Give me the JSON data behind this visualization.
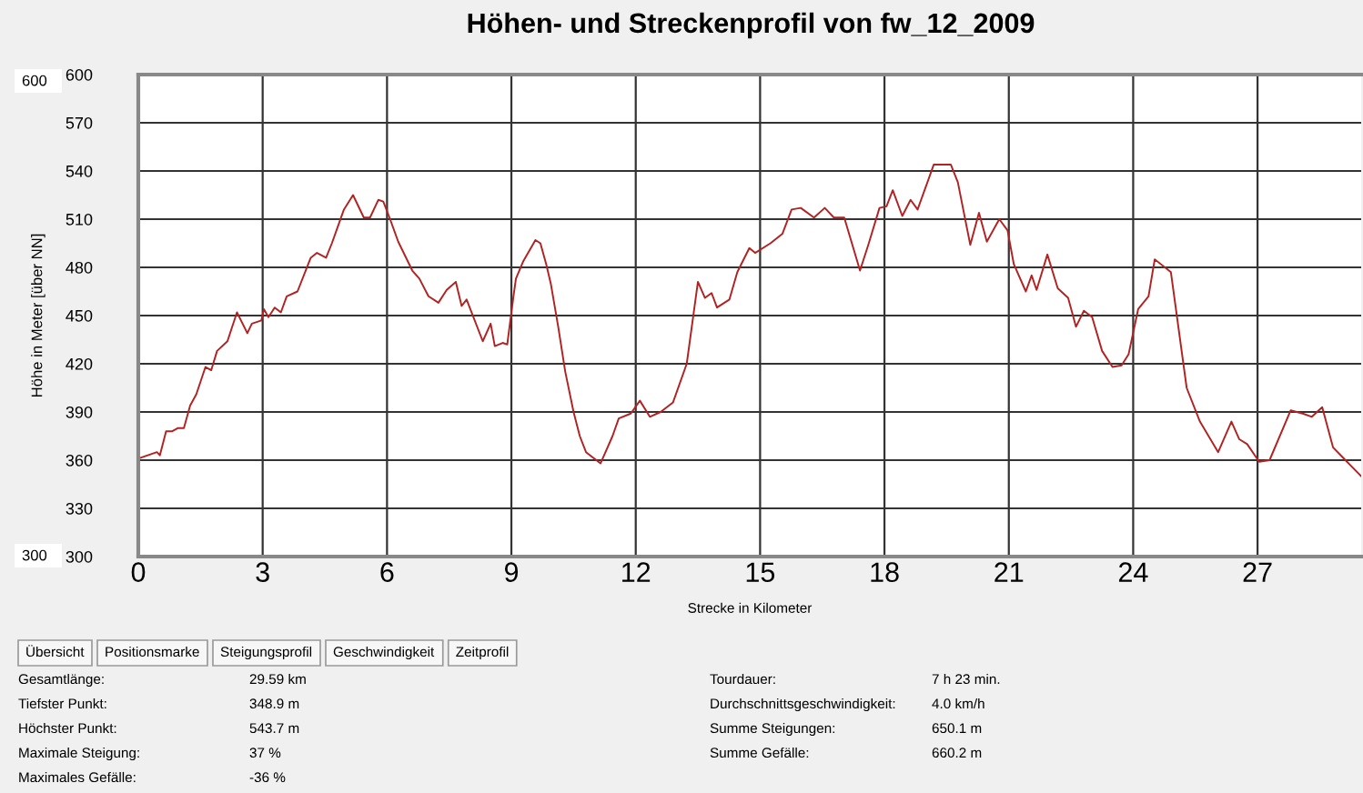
{
  "chart_data": {
    "type": "line",
    "title": "Höhen- und Streckenprofil von fw_12_2009",
    "xlabel": "Strecke in Kilometer",
    "ylabel": "Höhe in Meter [über NN]",
    "xlim": [
      0,
      29.5
    ],
    "xticks": [
      0,
      3,
      6,
      9,
      12,
      15,
      18,
      21,
      24,
      27
    ],
    "ylim": [
      300,
      600
    ],
    "yticks": [
      300,
      330,
      360,
      390,
      420,
      450,
      480,
      510,
      540,
      570,
      600
    ],
    "grid": true,
    "legend": false,
    "marker": "none",
    "line_style": "solid",
    "series": [
      {
        "color": "#b22222",
        "x": [
          0,
          0.45,
          0.52,
          0.67,
          0.82,
          0.96,
          1.1,
          1.25,
          1.4,
          1.62,
          1.76,
          1.9,
          2.15,
          2.38,
          2.63,
          2.74,
          2.97,
          3.03,
          3.14,
          3.29,
          3.44,
          3.58,
          3.84,
          4.16,
          4.31,
          4.53,
          4.67,
          4.96,
          5.18,
          5.44,
          5.59,
          5.79,
          5.91,
          6.06,
          6.27,
          6.61,
          6.78,
          7.0,
          7.24,
          7.44,
          7.66,
          7.8,
          7.92,
          8.31,
          8.5,
          8.6,
          8.79,
          8.9,
          9.05,
          9.11,
          9.29,
          9.58,
          9.7,
          9.84,
          9.95,
          10.13,
          10.3,
          10.5,
          10.65,
          10.8,
          11.15,
          11.44,
          11.59,
          11.88,
          12.1,
          12.34,
          12.6,
          12.9,
          13.23,
          13.5,
          13.67,
          13.83,
          13.96,
          14.26,
          14.45,
          14.74,
          14.88,
          15.25,
          15.54,
          15.76,
          15.98,
          16.3,
          16.56,
          16.78,
          17.03,
          17.26,
          17.41,
          17.61,
          17.88,
          18.05,
          18.2,
          18.43,
          18.63,
          18.8,
          19.19,
          19.6,
          19.77,
          20.07,
          20.28,
          20.47,
          20.77,
          20.97,
          21.12,
          21.41,
          21.55,
          21.67,
          21.93,
          22.18,
          22.43,
          22.62,
          22.81,
          23.01,
          23.25,
          23.5,
          23.72,
          23.89,
          24.12,
          24.37,
          24.52,
          24.91,
          25.29,
          25.61,
          26.05,
          26.37,
          26.56,
          26.75,
          27.04,
          27.29,
          27.8,
          28.09,
          28.31,
          28.56,
          28.82,
          29.12,
          29.5
        ],
        "values": [
          361,
          365,
          363,
          378,
          378,
          380,
          380,
          394,
          401,
          418,
          416,
          428,
          434,
          452,
          439,
          445,
          447,
          454,
          449,
          455,
          452,
          462,
          465,
          486,
          489,
          486,
          495,
          516,
          525,
          511,
          511,
          522,
          521,
          511,
          496,
          478,
          473,
          462,
          458,
          466,
          471,
          456,
          460,
          434,
          445,
          431,
          433,
          432,
          462,
          473,
          484,
          497,
          495,
          482,
          470,
          443,
          415,
          390,
          375,
          365,
          358,
          375,
          386,
          389,
          397,
          387,
          390,
          396,
          420,
          471,
          461,
          464,
          455,
          460,
          477,
          492,
          489,
          495,
          501,
          516,
          517,
          511,
          517,
          511,
          511,
          491,
          478,
          494,
          517,
          518,
          528,
          512,
          522,
          516,
          544,
          544,
          533,
          494,
          514,
          496,
          510,
          503,
          482,
          465,
          475,
          466,
          488,
          467,
          461,
          443,
          453,
          449,
          428,
          418,
          419,
          426,
          454,
          462,
          485,
          477,
          405,
          384,
          365,
          384,
          373,
          370,
          359,
          360,
          391,
          389,
          387,
          393,
          368,
          360,
          350
        ]
      }
    ],
    "annotations": [
      "600",
      "300",
      "Übersicht",
      "Positionsmarke",
      "Steigungsprofil",
      "Geschwindigkeit",
      "Zeitprofil",
      "Gesamtlänge:",
      "29.59 km",
      "Tiefster Punkt:",
      "348.9 m",
      "Höchster Punkt:",
      "543.7 m",
      "Maximale Steigung:",
      "37 %",
      "Maximales Gefälle:",
      "-36 %",
      "Tourdauer:",
      "7 h 23 min.",
      "Durchschnittsgeschwindigkeit:",
      "4.0 km/h",
      "Summe Steigungen:",
      "650.1 m",
      "Summe Gefälle:",
      "660.2 m"
    ]
  }
}
